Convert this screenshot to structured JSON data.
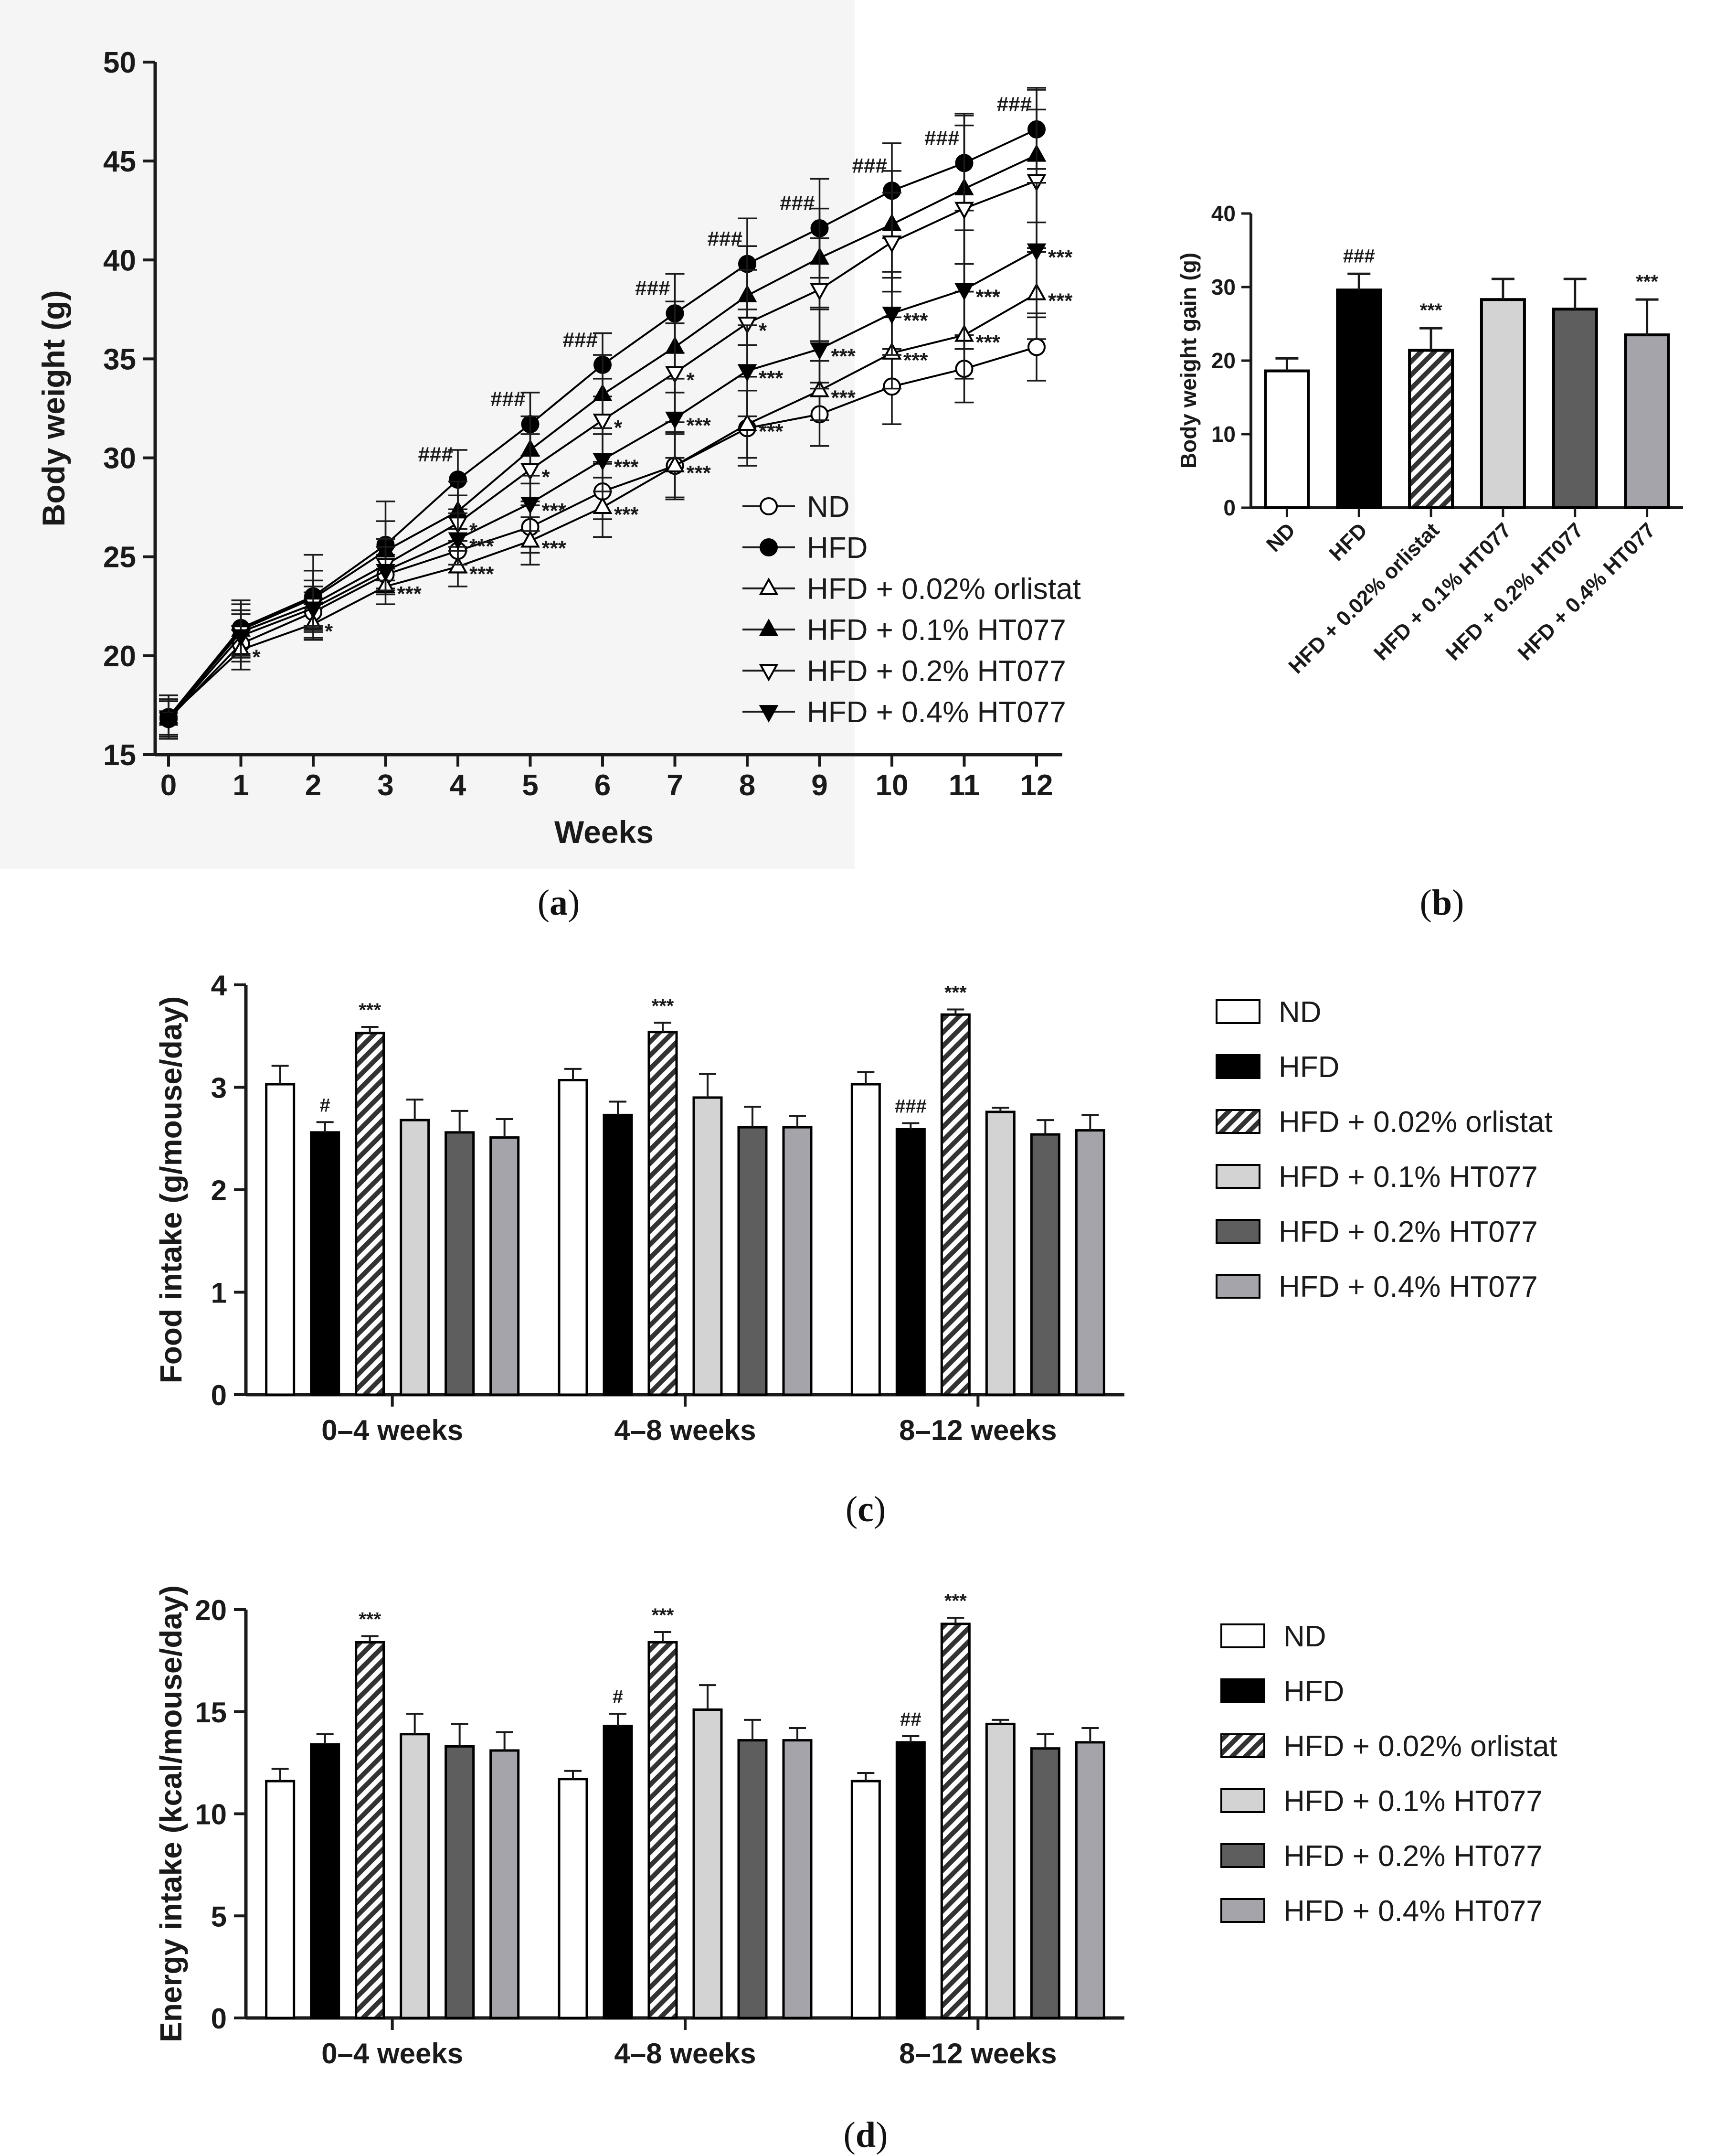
{
  "panel_labels": {
    "a": "a",
    "b": "b",
    "c": "c",
    "d": "d"
  },
  "legend_labels": [
    "ND",
    "HFD",
    "HFD + 0.02% orlistat",
    "HFD + 0.1% HT077",
    "HFD + 0.2% HT077",
    "HFD + 0.4% HT077"
  ],
  "colors": {
    "nd": "#ffffff",
    "hfd": "#000000",
    "hatch": "#333333",
    "ht01": "#d3d3d3",
    "ht02": "#5e5e5e",
    "ht04": "#a4a4aa",
    "axis": "#1a1a1a",
    "background_a": "#f5f5f5"
  },
  "chart_data": [
    {
      "id": "a",
      "type": "line",
      "xlabel": "Weeks",
      "ylabel": "Body weight (g)",
      "x": [
        0,
        1,
        2,
        3,
        4,
        5,
        6,
        7,
        8,
        9,
        10,
        11,
        12
      ],
      "xlim": [
        0,
        12
      ],
      "ylim": [
        15,
        50
      ],
      "yticks": [
        15,
        20,
        25,
        30,
        35,
        40,
        45,
        50
      ],
      "series": [
        {
          "name": "ND",
          "marker": "circle-open",
          "values": [
            16.8,
            20.6,
            22.2,
            24.1,
            25.3,
            26.5,
            28.3,
            29.6,
            31.5,
            32.2,
            33.6,
            34.5,
            35.6
          ],
          "errors": [
            0.9,
            0.9,
            1.0,
            1.0,
            1.1,
            1.3,
            1.4,
            1.7,
            1.9,
            1.6,
            1.9,
            1.7,
            1.7
          ],
          "annotations": []
        },
        {
          "name": "HFD",
          "marker": "circle-filled",
          "values": [
            16.9,
            21.4,
            23.0,
            25.6,
            28.9,
            31.7,
            34.7,
            37.3,
            39.8,
            41.6,
            43.5,
            44.9,
            46.6
          ],
          "errors": [
            1.1,
            1.4,
            2.1,
            2.2,
            1.5,
            1.6,
            1.6,
            2.0,
            2.3,
            2.5,
            2.4,
            2.4,
            2.0
          ],
          "annotations": [
            "",
            "",
            "",
            "",
            "###",
            "###",
            "###",
            "###",
            "###",
            "###",
            "###",
            "###",
            "###"
          ]
        },
        {
          "name": "HFD + 0.02% orlistat",
          "marker": "triangle-up-open",
          "values": [
            16.9,
            20.3,
            21.6,
            23.5,
            24.5,
            25.8,
            27.5,
            29.6,
            31.7,
            33.4,
            35.3,
            36.2,
            38.3
          ],
          "errors": [
            0.9,
            1.0,
            0.8,
            0.9,
            1.0,
            1.2,
            1.5,
            1.6,
            1.7,
            1.5,
            1.8,
            2.2,
            2.3
          ],
          "annotations": [
            "",
            "*",
            "*",
            "***",
            "***",
            "***",
            "***",
            "***",
            "***",
            "***",
            "***",
            "***",
            "***"
          ]
        },
        {
          "name": "HFD + 0.1% HT077",
          "marker": "triangle-up-filled",
          "values": [
            16.8,
            21.3,
            22.9,
            25.3,
            27.3,
            30.4,
            33.2,
            35.6,
            38.2,
            40.1,
            41.8,
            43.6,
            45.3
          ],
          "errors": [
            0.9,
            1.3,
            1.4,
            1.5,
            1.5,
            1.7,
            2.0,
            2.3,
            2.5,
            2.5,
            2.7,
            3.8,
            3.4
          ],
          "annotations": []
        },
        {
          "name": "HFD + 0.2% HT077",
          "marker": "triangle-down-open",
          "values": [
            16.9,
            21.2,
            22.6,
            24.6,
            26.7,
            29.4,
            31.9,
            34.3,
            36.8,
            38.5,
            40.9,
            42.6,
            44.0
          ],
          "errors": [
            0.9,
            1.1,
            1.2,
            1.3,
            1.4,
            1.8,
            2.1,
            2.5,
            2.7,
            2.6,
            2.5,
            4.2,
            3.6
          ],
          "annotations": [
            "",
            "",
            "",
            "",
            "*",
            "*",
            "*",
            "*",
            "*",
            "",
            "",
            "",
            ""
          ]
        },
        {
          "name": "HFD + 0.4% HT077",
          "marker": "triangle-down-filled",
          "values": [
            16.8,
            21.0,
            22.4,
            24.3,
            25.9,
            27.7,
            29.9,
            32.0,
            34.4,
            35.5,
            37.3,
            38.5,
            40.5
          ],
          "errors": [
            0.9,
            1.1,
            1.1,
            1.2,
            1.3,
            1.4,
            1.6,
            2.0,
            2.3,
            2.0,
            2.1,
            3.0,
            3.4
          ],
          "annotations": [
            "",
            "",
            "",
            "",
            "***",
            "***",
            "***",
            "***",
            "***",
            "***",
            "***",
            "***",
            "***"
          ]
        }
      ]
    },
    {
      "id": "b",
      "type": "bar",
      "ylabel": "Body weight gain (g)",
      "ylim": [
        0,
        40
      ],
      "yticks": [
        0,
        10,
        20,
        30,
        40
      ],
      "categories": [
        "ND",
        "HFD",
        "HFD + 0.02% orlistat",
        "HFD + 0.1% HT077",
        "HFD + 0.2% HT077",
        "HFD + 0.4% HT077"
      ],
      "values": [
        18.6,
        29.6,
        21.4,
        28.3,
        27.0,
        23.5
      ],
      "errors": [
        1.7,
        2.2,
        3.0,
        2.8,
        4.1,
        4.8
      ],
      "annotations": [
        "",
        "###",
        "***",
        "",
        "",
        "***"
      ]
    },
    {
      "id": "c",
      "type": "bar",
      "ylabel": "Food intake (g/mouse/day)",
      "ylim": [
        0,
        4
      ],
      "yticks": [
        0,
        1,
        2,
        3,
        4
      ],
      "categories": [
        "0–4 weeks",
        "4–8 weeks",
        "8–12 weeks"
      ],
      "series": [
        {
          "name": "ND",
          "values": [
            3.03,
            3.07,
            3.03
          ],
          "errors": [
            0.18,
            0.11,
            0.12
          ],
          "annotations": [
            "",
            "",
            ""
          ]
        },
        {
          "name": "HFD",
          "values": [
            2.56,
            2.73,
            2.59
          ],
          "errors": [
            0.1,
            0.13,
            0.06
          ],
          "annotations": [
            "#",
            "",
            "###"
          ]
        },
        {
          "name": "HFD + 0.02% orlistat",
          "values": [
            3.53,
            3.54,
            3.71
          ],
          "errors": [
            0.06,
            0.09,
            0.05
          ],
          "annotations": [
            "***",
            "***",
            "***"
          ]
        },
        {
          "name": "HFD + 0.1% HT077",
          "values": [
            2.68,
            2.9,
            2.76
          ],
          "errors": [
            0.2,
            0.23,
            0.04
          ],
          "annotations": [
            "",
            "",
            ""
          ]
        },
        {
          "name": "HFD + 0.2% HT077",
          "values": [
            2.56,
            2.61,
            2.54
          ],
          "errors": [
            0.21,
            0.2,
            0.14
          ],
          "annotations": [
            "",
            "",
            ""
          ]
        },
        {
          "name": "HFD + 0.4% HT077",
          "values": [
            2.51,
            2.61,
            2.58
          ],
          "errors": [
            0.18,
            0.11,
            0.15
          ],
          "annotations": [
            "",
            "",
            ""
          ]
        }
      ]
    },
    {
      "id": "d",
      "type": "bar",
      "ylabel": "Energy intake (kcal/mouse/day)",
      "ylim": [
        0,
        20
      ],
      "yticks": [
        0,
        5,
        10,
        15,
        20
      ],
      "categories": [
        "0–4 weeks",
        "4–8 weeks",
        "8–12 weeks"
      ],
      "series": [
        {
          "name": "ND",
          "values": [
            11.6,
            11.7,
            11.6
          ],
          "errors": [
            0.6,
            0.4,
            0.4
          ],
          "annotations": [
            "",
            "",
            ""
          ]
        },
        {
          "name": "HFD",
          "values": [
            13.4,
            14.3,
            13.5
          ],
          "errors": [
            0.5,
            0.6,
            0.3
          ],
          "annotations": [
            "",
            "#",
            "##"
          ]
        },
        {
          "name": "HFD + 0.02% orlistat",
          "values": [
            18.4,
            18.4,
            19.3
          ],
          "errors": [
            0.3,
            0.5,
            0.3
          ],
          "annotations": [
            "***",
            "***",
            "***"
          ]
        },
        {
          "name": "HFD + 0.1% HT077",
          "values": [
            13.9,
            15.1,
            14.4
          ],
          "errors": [
            1.0,
            1.2,
            0.2
          ],
          "annotations": [
            "",
            "",
            ""
          ]
        },
        {
          "name": "HFD + 0.2% HT077",
          "values": [
            13.3,
            13.6,
            13.2
          ],
          "errors": [
            1.1,
            1.0,
            0.7
          ],
          "annotations": [
            "",
            "",
            ""
          ]
        },
        {
          "name": "HFD + 0.4% HT077",
          "values": [
            13.1,
            13.6,
            13.5
          ],
          "errors": [
            0.9,
            0.6,
            0.7
          ],
          "annotations": [
            "",
            "",
            ""
          ]
        }
      ]
    }
  ]
}
